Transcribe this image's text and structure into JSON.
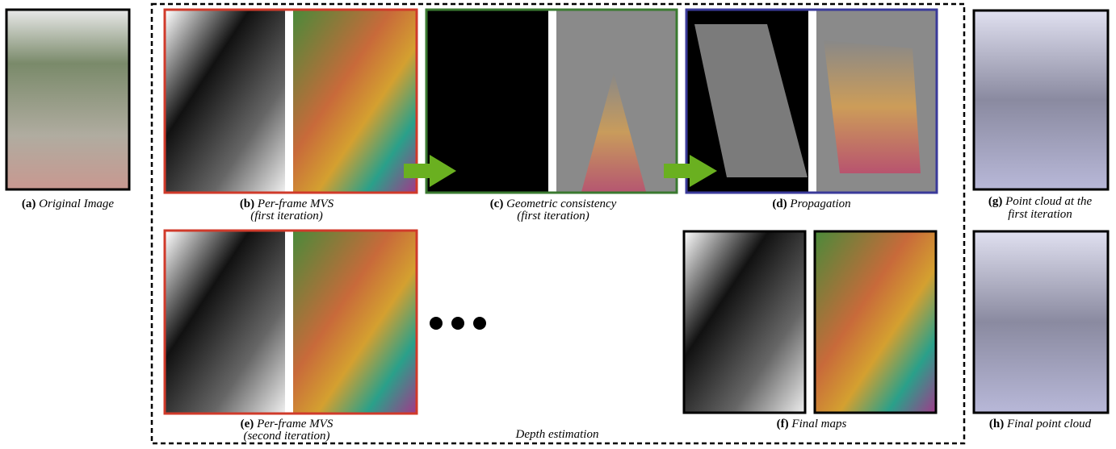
{
  "captions": {
    "a": {
      "label": "(a)",
      "lines": [
        "Original Image"
      ]
    },
    "b": {
      "label": "(b)",
      "lines": [
        "Per-frame MVS",
        "(first iteration)"
      ]
    },
    "c": {
      "label": "(c)",
      "lines": [
        "Geometric consistency",
        "(first iteration)"
      ]
    },
    "d": {
      "label": "(d)",
      "lines": [
        "Propagation"
      ]
    },
    "e": {
      "label": "(e)",
      "lines": [
        "Per-frame MVS",
        "(second iteration)"
      ]
    },
    "f": {
      "label": "(f)",
      "lines": [
        "Final maps"
      ]
    },
    "g": {
      "label": "(g)",
      "lines": [
        "Point cloud at the",
        "first iteration"
      ]
    },
    "h": {
      "label": "(h)",
      "lines": [
        "Final point cloud"
      ]
    }
  },
  "group_label": "Depth estimation"
}
